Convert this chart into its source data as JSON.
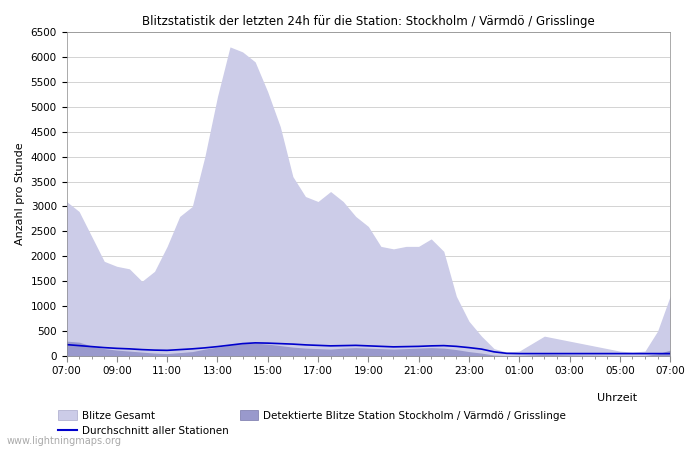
{
  "title": "Blitzstatistik der letzten 24h für die Station: Stockholm / Värmdö / Grisslinge",
  "ylabel": "Anzahl pro Stunde",
  "xlabel_right": "Uhrzeit",
  "background_color": "#ffffff",
  "plot_bg_color": "#ffffff",
  "ylim": [
    0,
    6500
  ],
  "yticks": [
    0,
    500,
    1000,
    1500,
    2000,
    2500,
    3000,
    3500,
    4000,
    4500,
    5000,
    5500,
    6000,
    6500
  ],
  "x_labels": [
    "07:00",
    "09:00",
    "11:00",
    "13:00",
    "15:00",
    "17:00",
    "19:00",
    "21:00",
    "23:00",
    "01:00",
    "03:00",
    "05:00",
    "07:00"
  ],
  "watermark": "www.lightningmaps.org",
  "legend_gesamt": "Blitze Gesamt",
  "legend_durchschnitt": "Durchschnitt aller Stationen",
  "legend_detektierte": "Detektierte Blitze Station Stockholm / Värmdö / Grisslinge",
  "gesamt_color": "#cccce8",
  "detektierte_color": "#9999cc",
  "durchschnitt_color": "#0000cc",
  "x_values": [
    0,
    1,
    2,
    3,
    4,
    5,
    6,
    7,
    8,
    9,
    10,
    11,
    12,
    13,
    14,
    15,
    16,
    17,
    18,
    19,
    20,
    21,
    22,
    23,
    24,
    25,
    26,
    27,
    28,
    29,
    30,
    31,
    32,
    33,
    34,
    35,
    36,
    37,
    38,
    39,
    40,
    41,
    42,
    43,
    44,
    45,
    46,
    47,
    48
  ],
  "gesamt_values": [
    3100,
    2900,
    2400,
    1900,
    1800,
    1750,
    1500,
    1700,
    2200,
    2800,
    3000,
    4000,
    5200,
    6200,
    6100,
    5900,
    5300,
    4600,
    3600,
    3200,
    3100,
    3300,
    3100,
    2800,
    2600,
    2200,
    2150,
    2200,
    2200,
    2350,
    2100,
    1200,
    700,
    400,
    150,
    80,
    100,
    250,
    400,
    350,
    300,
    250,
    200,
    150,
    100,
    80,
    100,
    500,
    1200
  ],
  "detektierte_values": [
    300,
    280,
    200,
    150,
    120,
    100,
    80,
    60,
    50,
    70,
    90,
    140,
    180,
    220,
    250,
    260,
    240,
    210,
    180,
    160,
    150,
    140,
    160,
    170,
    160,
    150,
    140,
    150,
    160,
    170,
    160,
    130,
    90,
    60,
    20,
    10,
    15,
    25,
    35,
    30,
    25,
    20,
    18,
    15,
    12,
    10,
    12,
    45,
    120
  ],
  "durchschnitt_values": [
    230,
    210,
    190,
    170,
    155,
    145,
    130,
    120,
    115,
    130,
    145,
    165,
    190,
    220,
    250,
    265,
    260,
    250,
    240,
    225,
    215,
    205,
    210,
    215,
    205,
    195,
    185,
    190,
    195,
    205,
    210,
    195,
    170,
    140,
    85,
    55,
    50,
    50,
    50,
    50,
    50,
    50,
    50,
    50,
    50,
    50,
    50,
    50,
    50
  ]
}
